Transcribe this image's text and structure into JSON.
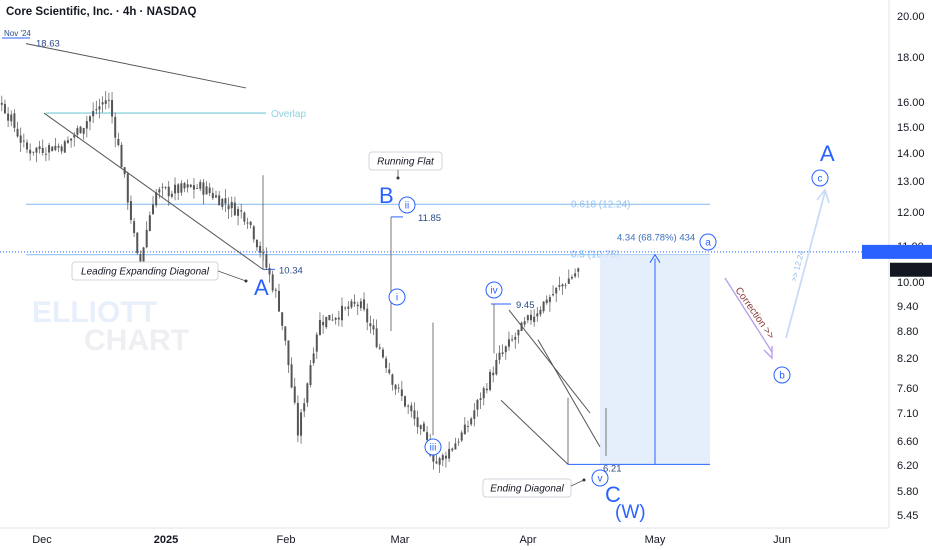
{
  "header": {
    "title": "Core Scientific, Inc. · 4h · NASDAQ"
  },
  "watermark": {
    "line1": "ELLIOTT",
    "line2": "CHART"
  },
  "colors": {
    "blue": "#2962ff",
    "label_blue": "#3a7bd5",
    "fib": "#90c2f2",
    "overlap": "#8fd3df",
    "grey": "#555555",
    "candle": "#555555",
    "maroon": "#8b3a3a",
    "purple": "#b7a2e6",
    "zone": "#dce9fb"
  },
  "chart_data": {
    "type": "candlestick",
    "title": "Core Scientific, Inc. · 4h · NASDAQ",
    "y_axis_ticks": [
      "20.00",
      "18.00",
      "16.00",
      "15.00",
      "14.00",
      "13.00",
      "12.00",
      "11.00",
      "10.00",
      "9.40",
      "8.80",
      "8.20",
      "7.60",
      "7.10",
      "6.60",
      "6.20",
      "5.80",
      "5.45"
    ],
    "x_axis_ticks": [
      "Dec",
      "2025",
      "Feb",
      "Mar",
      "Apr",
      "May",
      "Jun"
    ],
    "scale": "log",
    "price_tags": {
      "post_label": "Post",
      "post_value": "10.83",
      "last_value": "10.33"
    },
    "path_samples": [
      [
        "Nov 25",
        17.6
      ],
      [
        "Dec 10",
        15.8
      ],
      [
        "Dec 22",
        14.1
      ],
      [
        "Jan 6",
        14.3
      ],
      [
        "Jan 17",
        16.2
      ],
      [
        "Jan 25",
        10.34
      ],
      [
        "Jan 29",
        12.6
      ],
      [
        "Feb 10",
        12.8
      ],
      [
        "Feb 22",
        11.85
      ],
      [
        "Mar 2",
        9.5
      ],
      [
        "Mar 7",
        6.7
      ],
      [
        "Mar 12",
        9.0
      ],
      [
        "Mar 22",
        9.45
      ],
      [
        "Mar 31",
        7.6
      ],
      [
        "Apr 10",
        6.21
      ],
      [
        "Apr 17",
        6.8
      ],
      [
        "Apr 25",
        8.2
      ],
      [
        "May 5",
        9.4
      ],
      [
        "May 14",
        10.33
      ]
    ],
    "levels": [
      {
        "label": "0.618 (12.24)",
        "value": 12.24
      },
      {
        "label": "0.5 (10.75)",
        "value": 10.75
      },
      {
        "label": "Overlap",
        "value": 15.55
      }
    ],
    "price_labels": [
      "Nov '24",
      "18.63",
      "10.34",
      "11.85",
      "9.45",
      "6.21"
    ],
    "wave_labels": [
      "A",
      "B",
      "C",
      "(W)",
      "A",
      "ii",
      "i",
      "iii",
      "iv",
      "v",
      "a",
      "b",
      "c"
    ],
    "callouts": [
      "Leading Expanding Diagonal",
      "Running Flat",
      "Ending Diagonal"
    ],
    "measure_label": "4.34 (68.78%) 434",
    "projection_labels": [
      "Correction >>",
      ">> 12.24"
    ]
  }
}
